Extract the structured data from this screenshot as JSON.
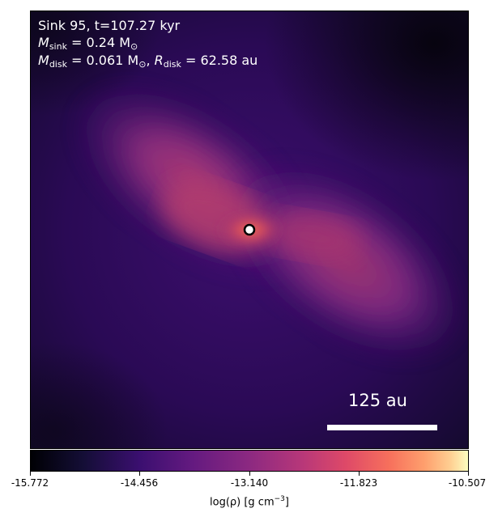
{
  "title_line": "Sink 95, t=107.27 kyr",
  "sink_mass": {
    "symbol": "M",
    "sub": "sink",
    "value": " = 0.24 M",
    "unit_sub": "⊙"
  },
  "disk": {
    "mass_symbol": "M",
    "mass_sub": "disk",
    "mass_value": " = 0.061 M",
    "mass_unit_sub": "⊙",
    "radius_symbol": "R",
    "radius_sub": "disk",
    "radius_value": " = 62.58 au"
  },
  "scale_bar_label": "125 au",
  "colorbar": {
    "colormap": "magma",
    "ticks": [
      "-15.772",
      "-14.456",
      "-13.140",
      "-11.823",
      "-10.507"
    ],
    "label_main": "log(ρ) [g cm",
    "label_exp": "−3",
    "label_end": "]"
  }
}
